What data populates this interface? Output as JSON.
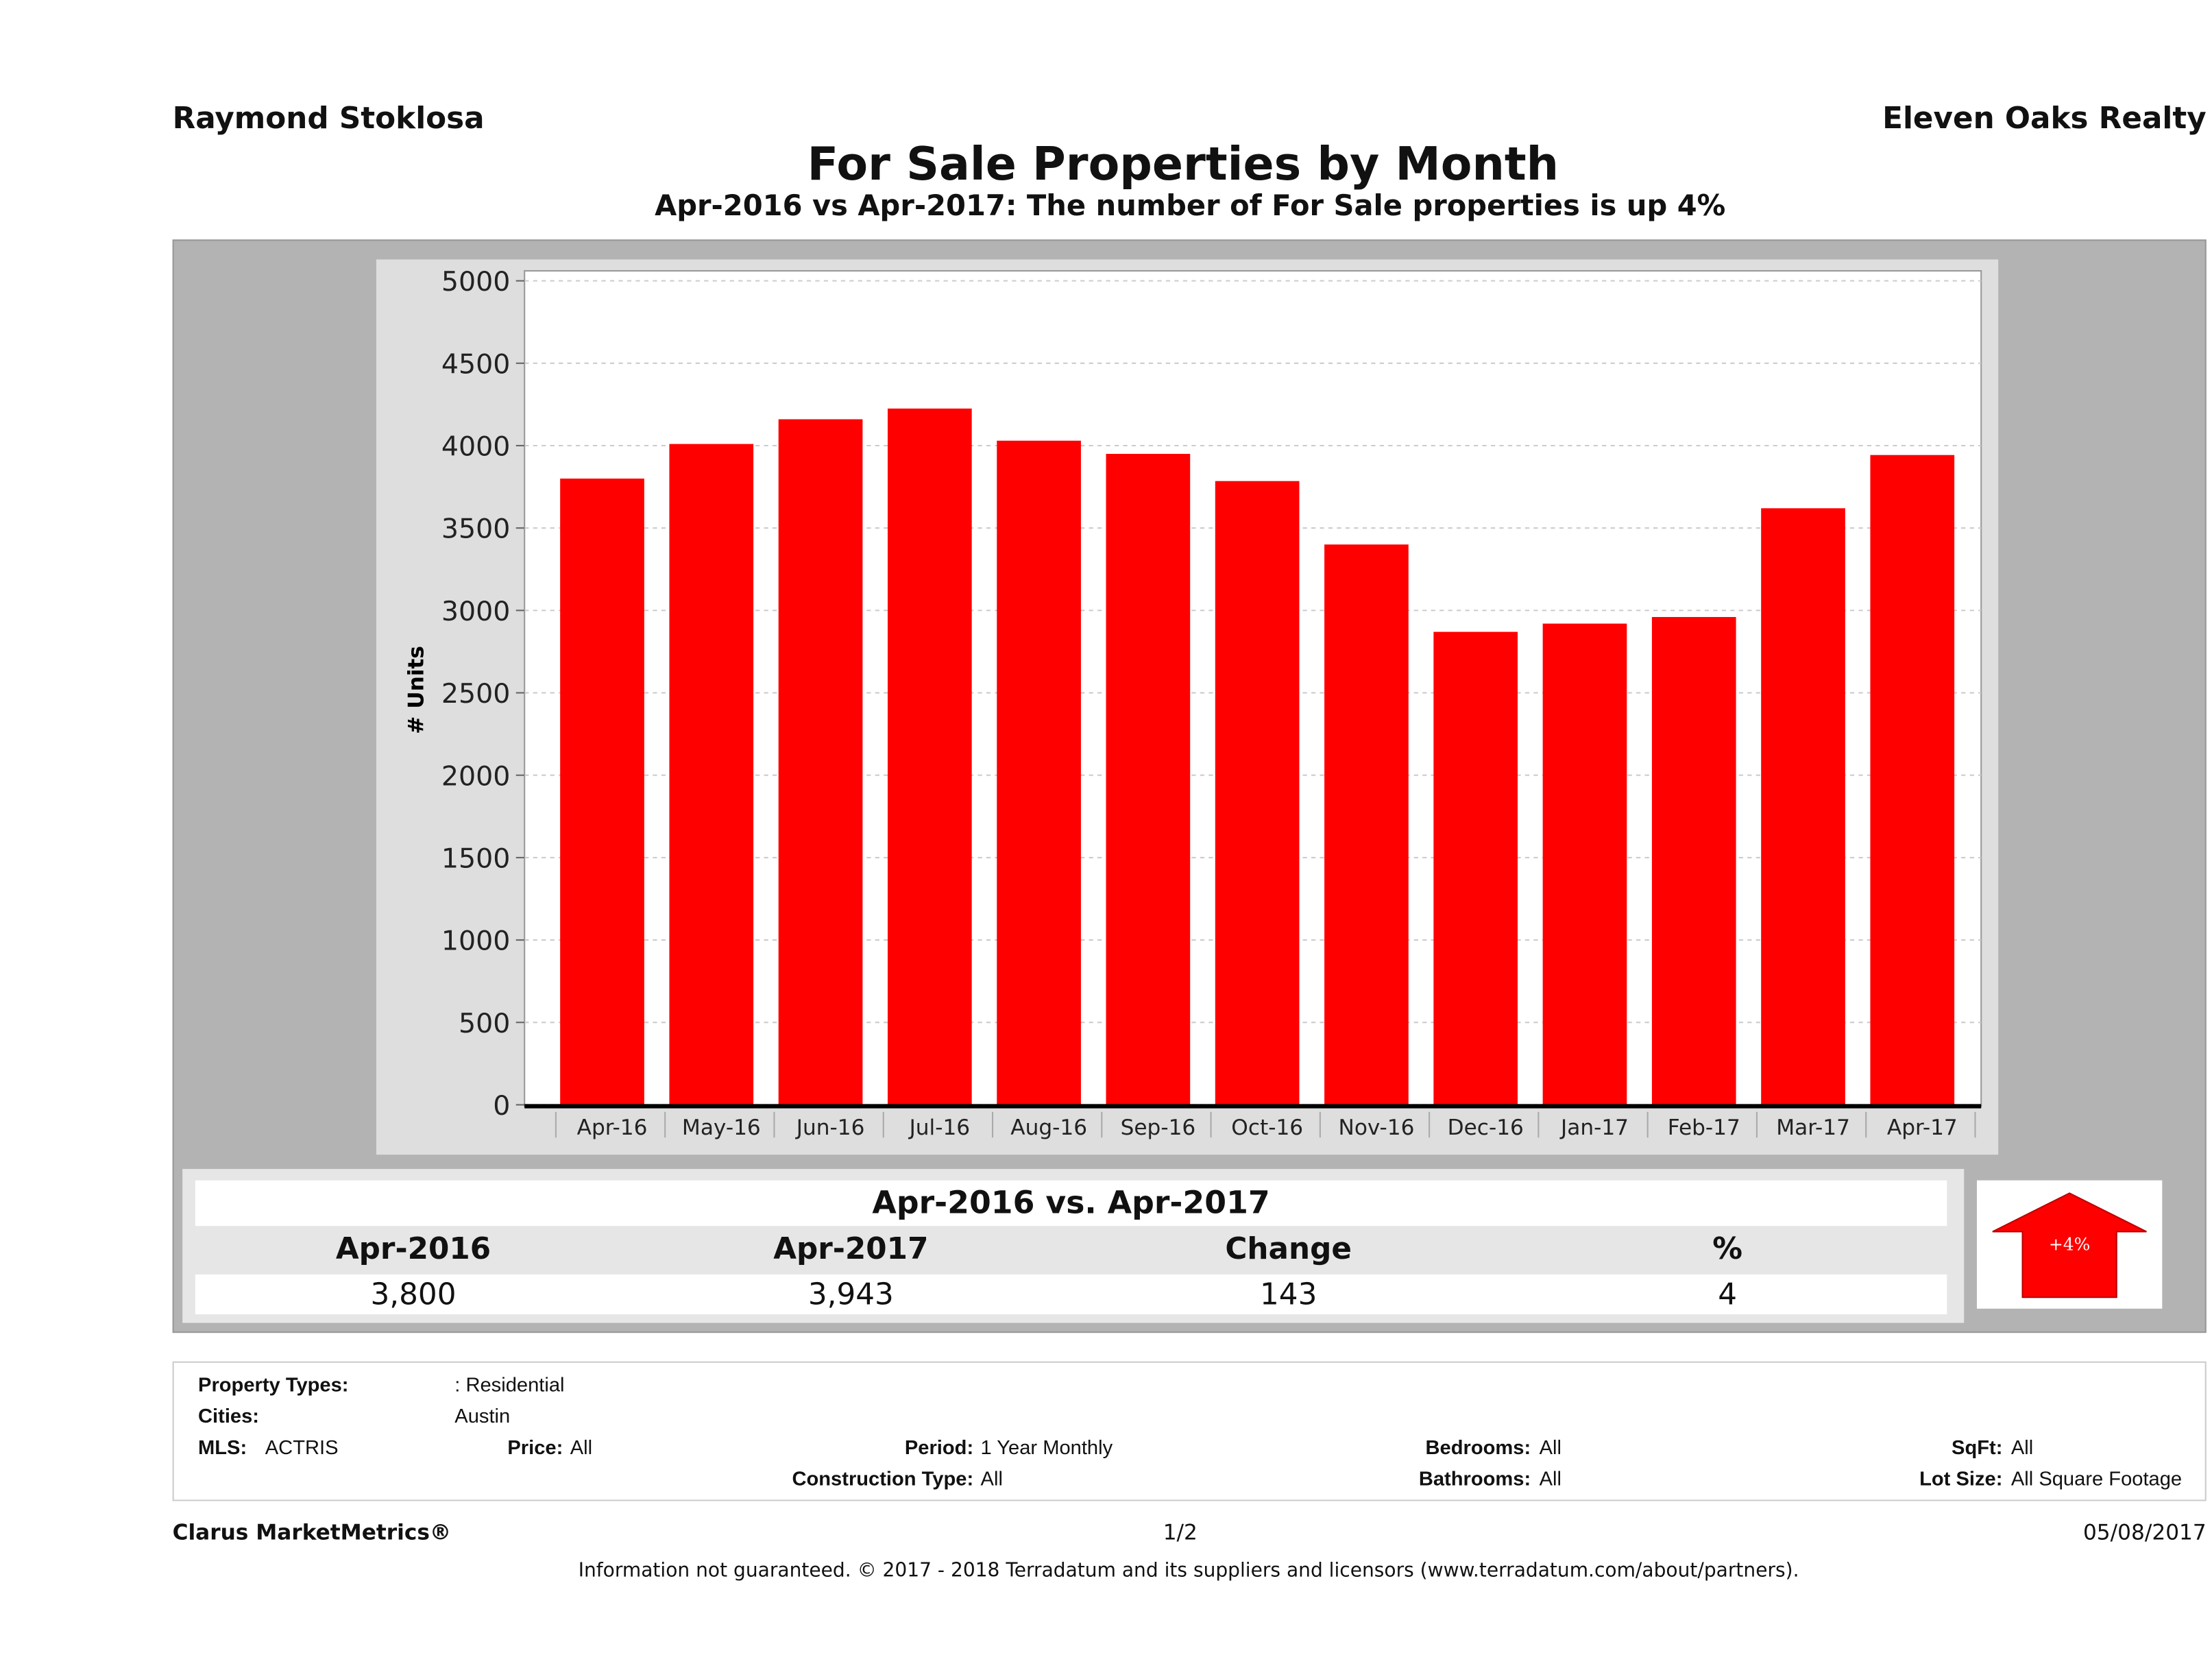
{
  "header": {
    "author": "Raymond Stoklosa",
    "company": "Eleven Oaks Realty",
    "title": "For Sale Properties by Month",
    "subtitle": "Apr-2016 vs Apr-2017: The number of For Sale  properties is up 4%"
  },
  "chart_data": {
    "type": "bar",
    "title": "",
    "xlabel": "",
    "ylabel": "# Units",
    "ylim": [
      0,
      5000
    ],
    "yticks": [
      0,
      500,
      1000,
      1500,
      2000,
      2500,
      3000,
      3500,
      4000,
      4500,
      5000
    ],
    "grid": true,
    "bar_color": "#ff0000",
    "categories": [
      "Apr-16",
      "May-16",
      "Jun-16",
      "Jul-16",
      "Aug-16",
      "Sep-16",
      "Oct-16",
      "Nov-16",
      "Dec-16",
      "Jan-17",
      "Feb-17",
      "Mar-17",
      "Apr-17"
    ],
    "values": [
      3800,
      4010,
      4160,
      4225,
      4030,
      3950,
      3785,
      3400,
      2870,
      2920,
      2960,
      3620,
      3943
    ]
  },
  "comparison": {
    "heading": "Apr-2016 vs. Apr-2017",
    "columns": [
      "Apr-2016",
      "Apr-2017",
      "Change",
      "%"
    ],
    "values": [
      "3,800",
      "3,943",
      "143",
      "4"
    ],
    "badge": "+4%",
    "badge_color": "#ff0000"
  },
  "filters": {
    "property_types_label": "Property Types:",
    "property_types": ": Residential",
    "cities_label": "Cities:",
    "cities": "Austin",
    "mls_label": "MLS:",
    "mls": "ACTRIS",
    "price_label": "Price:",
    "price": "All",
    "period_label": "Period:",
    "period": "1 Year Monthly",
    "bedrooms_label": "Bedrooms:",
    "bedrooms": "All",
    "sqft_label": "SqFt:",
    "sqft": "All",
    "construction_label": "Construction Type:",
    "construction": "All",
    "bathrooms_label": "Bathrooms:",
    "bathrooms": "All",
    "lot_label": "Lot Size:",
    "lot": "All Square Footage"
  },
  "footer": {
    "brand": "Clarus MarketMetrics®",
    "page": "1/2",
    "date": "05/08/2017",
    "disclaimer": "Information not guaranteed. © 2017 - 2018 Terradatum and its suppliers and licensors (www.terradatum.com/about/partners)."
  }
}
